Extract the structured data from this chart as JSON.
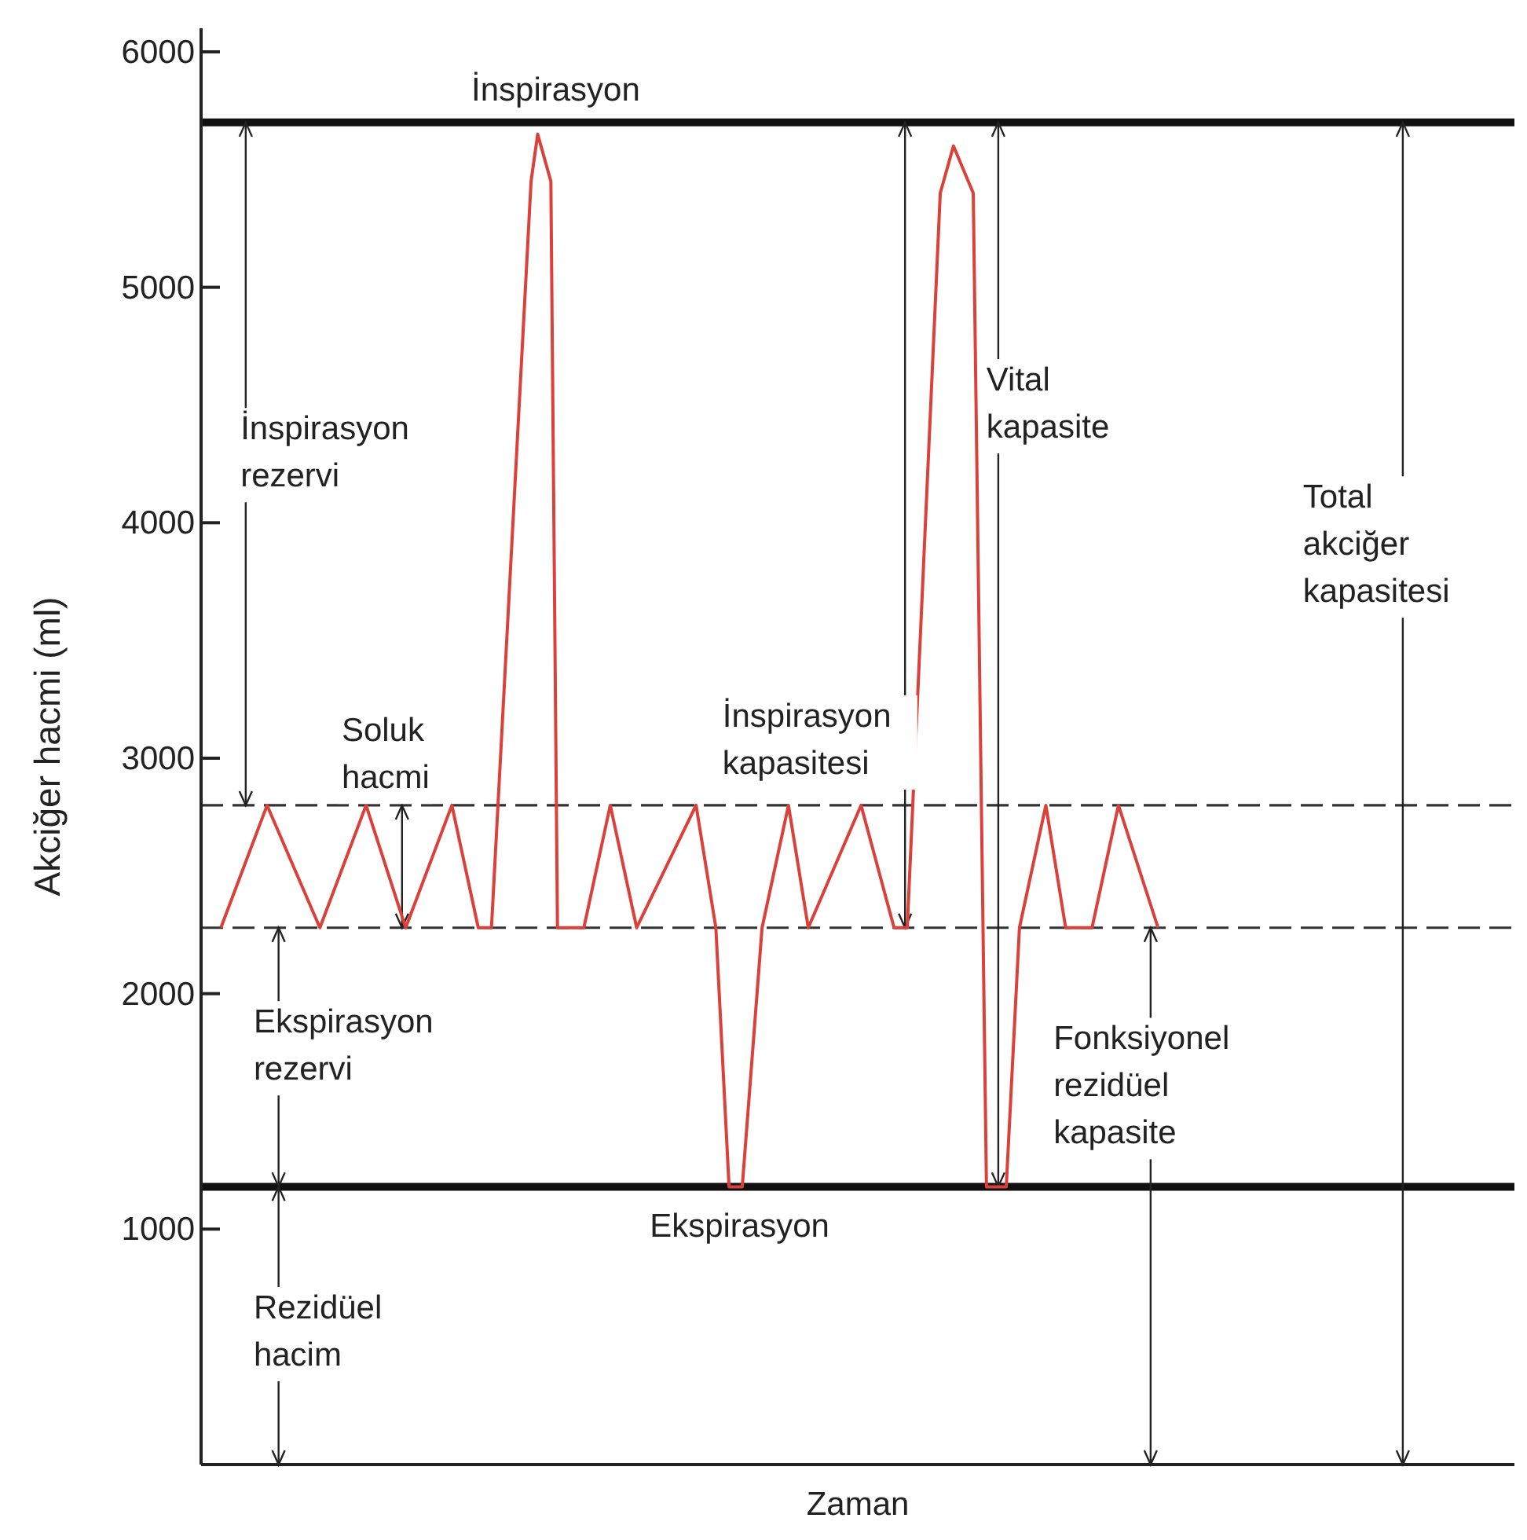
{
  "chart_data": {
    "type": "line",
    "xlabel": "Zaman",
    "ylabel": "Akciğer hacmi (ml)",
    "ylim": [
      0,
      6100
    ],
    "yticks": [
      1000,
      2000,
      3000,
      4000,
      5000,
      6000
    ],
    "tick_labels": "y",
    "grid": false,
    "marker": "none",
    "line_style": "solid",
    "categories": [
      null,
      null,
      null,
      null,
      null,
      null,
      null,
      null,
      null,
      null,
      null,
      null,
      null,
      null,
      null,
      null,
      null,
      null,
      null,
      null,
      null,
      null,
      null,
      null,
      null,
      null,
      null,
      null,
      null,
      null,
      null,
      null,
      null,
      null,
      null,
      null,
      null,
      null,
      null,
      null,
      null,
      null,
      null,
      null,
      null,
      null,
      null,
      null,
      null,
      null,
      null,
      null,
      null,
      null,
      null,
      null,
      null,
      null,
      null,
      null,
      null,
      null,
      null,
      null,
      null,
      null,
      null,
      null,
      null,
      null,
      null,
      null,
      null,
      null,
      null,
      null,
      null,
      null,
      null,
      null,
      null,
      null,
      null,
      null,
      null,
      null,
      null,
      null,
      null,
      null,
      null,
      null,
      null,
      null,
      null,
      null,
      null,
      null,
      null,
      null,
      null,
      null,
      null,
      null,
      null,
      null,
      null,
      null,
      null,
      null,
      null,
      null,
      null,
      null,
      null,
      null,
      null,
      null,
      null,
      null,
      null,
      null,
      null,
      null,
      null,
      null,
      null,
      null,
      null,
      null,
      null,
      null,
      null,
      null,
      null,
      null,
      null,
      null,
      null,
      null,
      null,
      null,
      null,
      null,
      null,
      null,
      null,
      null,
      null,
      null,
      null,
      null,
      null,
      null,
      null,
      null,
      null,
      null,
      null,
      null,
      null,
      null,
      null,
      null,
      null,
      null,
      null,
      null,
      null,
      null,
      null,
      null,
      null,
      null,
      null,
      null,
      null,
      null,
      null,
      null,
      null,
      null,
      null,
      null,
      null,
      null,
      null,
      null,
      null,
      null,
      null,
      null,
      null,
      null,
      null,
      null,
      null,
      null,
      null,
      null
    ],
    "series": [
      {
        "color": "#d9413a",
        "values": [
          null,
          null,
          null,
          2280,
          null,
          null,
          null,
          null,
          null,
          null,
          2800,
          null,
          null,
          null,
          null,
          null,
          null,
          null,
          2280,
          null,
          null,
          null,
          null,
          null,
          null,
          2800,
          null,
          null,
          null,
          null,
          null,
          2280,
          null,
          null,
          null,
          null,
          null,
          null,
          2800,
          null,
          null,
          null,
          2280,
          null,
          2280,
          null,
          null,
          null,
          null,
          null,
          5450,
          5650,
          null,
          5450,
          2280,
          null,
          null,
          null,
          2280,
          null,
          null,
          null,
          2800,
          null,
          null,
          null,
          2280,
          null,
          null,
          null,
          null,
          null,
          null,
          null,
          null,
          2800,
          null,
          null,
          2280,
          null,
          1180,
          null,
          1180,
          null,
          null,
          2280,
          null,
          null,
          null,
          2800,
          null,
          null,
          2280,
          null,
          null,
          null,
          null,
          null,
          null,
          null,
          2800,
          null,
          null,
          null,
          null,
          2280,
          null,
          2280,
          null,
          null,
          null,
          null,
          5400,
          null,
          5600,
          null,
          null,
          5400,
          null,
          1180,
          null,
          null,
          1180,
          null,
          2280,
          null,
          null,
          null,
          2800,
          null,
          null,
          2280,
          null,
          null,
          null,
          2280,
          null,
          null,
          null,
          2800,
          null,
          null,
          null,
          null,
          null,
          2280,
          null,
          null,
          null,
          null,
          null,
          null,
          null,
          null,
          null,
          null,
          null,
          null,
          null,
          null,
          null,
          null,
          null,
          null,
          null,
          null,
          null,
          null,
          null,
          null,
          null,
          null,
          null,
          null,
          null,
          null,
          null,
          null,
          null,
          null,
          null,
          null,
          null,
          null,
          null,
          null,
          null,
          null,
          null,
          null,
          null,
          null,
          null,
          null,
          null,
          null,
          null,
          null,
          null,
          null
        ]
      }
    ],
    "ref_lines": [
      {
        "axis": "y",
        "value": 5700,
        "label": "İnspirasyon",
        "color": "#111111",
        "line_style": "solid"
      },
      {
        "axis": "y",
        "value": 2800,
        "color": "#333333",
        "line_style": "dashed"
      },
      {
        "axis": "y",
        "value": 2280,
        "color": "#333333",
        "line_style": "dashed"
      },
      {
        "axis": "y",
        "value": 1180,
        "label": "Ekspirasyon",
        "color": "#111111",
        "line_style": "solid"
      }
    ],
    "annotations": [
      "İnspirasyon\nrezervi",
      "Soluk\nhacmi",
      "Ekspirasyon\nrezervi",
      "Rezidüel\nhacim",
      "İnspirasyon\nkapasitesi",
      "Vital\nkapasite",
      "Total\nakciğer\nkapasitesi",
      "Fonksiyonel\nrezidüel\nkapasite"
    ]
  }
}
